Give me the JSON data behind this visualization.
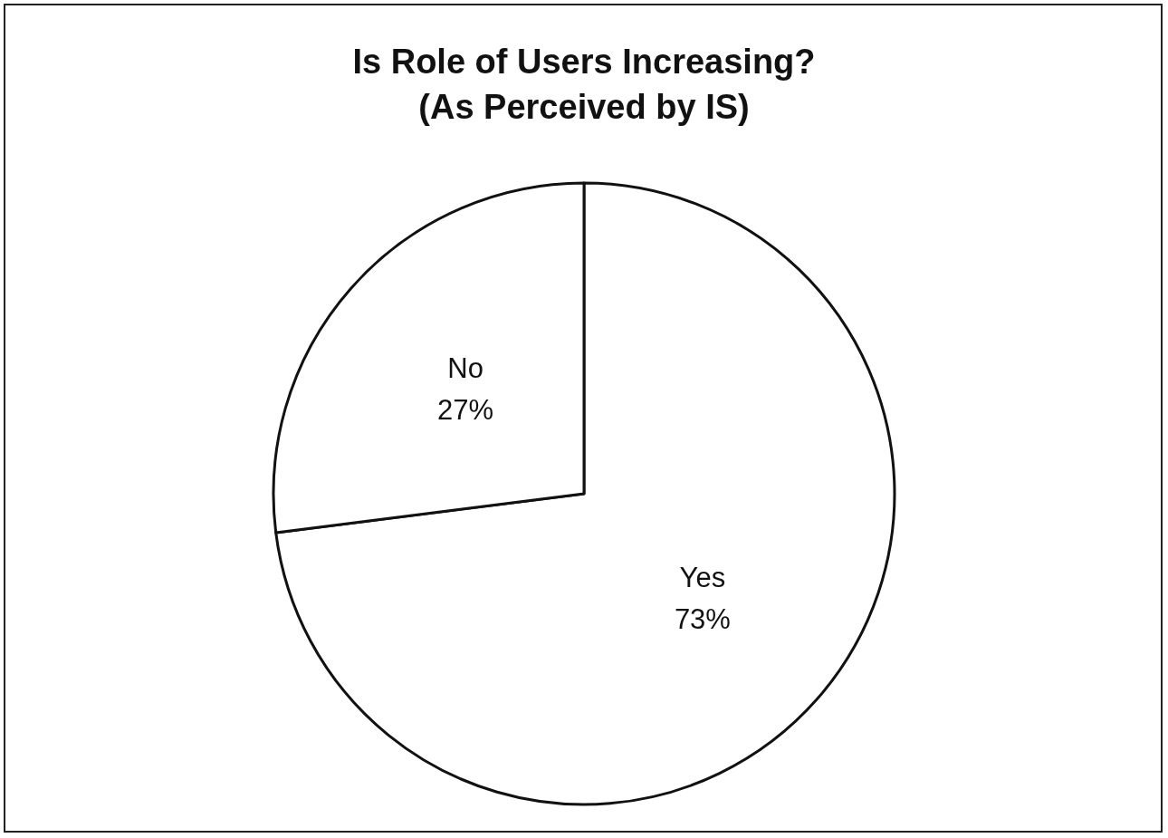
{
  "chart_data": {
    "type": "pie",
    "title": "Is Role of Users Increasing?\n(As Perceived by IS)",
    "categories": [
      "Yes",
      "No"
    ],
    "values": [
      73,
      27
    ],
    "colors": [
      "#ffffff",
      "#ffffff"
    ],
    "value_labels": [
      "73%",
      "27%"
    ]
  }
}
